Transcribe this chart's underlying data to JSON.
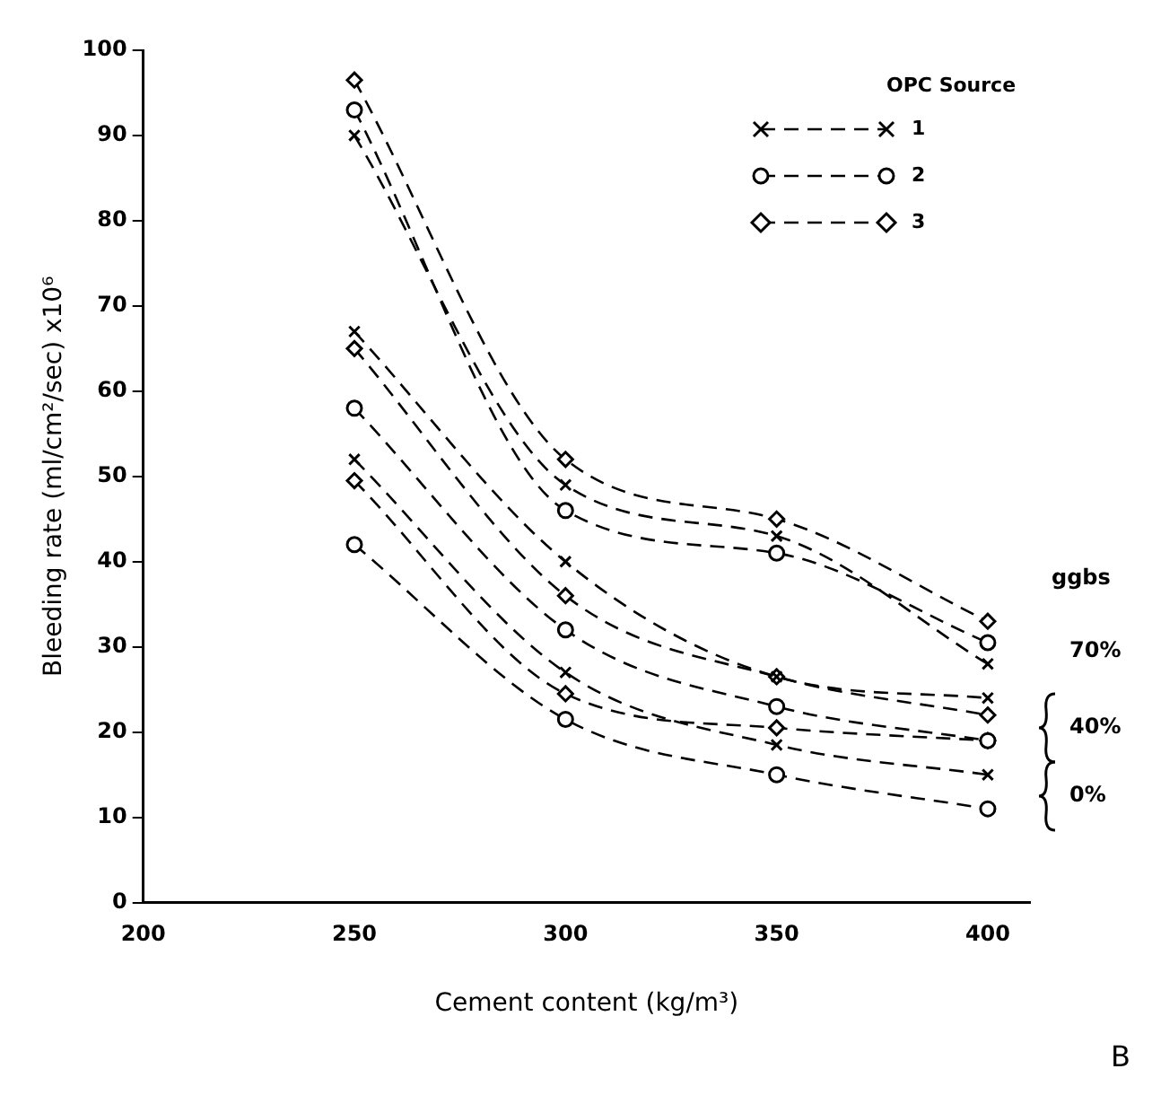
{
  "chart_data": {
    "type": "line",
    "xlabel": "Cement content (kg/m³)",
    "ylabel": "Bleeding rate (ml/cm²/sec) x10⁶",
    "legend_title": "OPC Source",
    "x": [
      250,
      300,
      350,
      400
    ],
    "xlim": [
      200,
      410
    ],
    "xticks": [
      200,
      250,
      300,
      350,
      400
    ],
    "ylim": [
      0,
      100
    ],
    "yticks": [
      0,
      10,
      20,
      30,
      40,
      50,
      60,
      70,
      80,
      90,
      100
    ],
    "grid": false,
    "legend": "top right",
    "line_style": "dashed",
    "series": [
      {
        "name": "1",
        "color": "#000000",
        "marker": "cross",
        "values": [
          90,
          49,
          43,
          28
        ]
      },
      {
        "name": "2",
        "color": "#000000",
        "marker": "circle",
        "values": [
          93,
          46,
          41,
          30.5
        ]
      },
      {
        "name": "3",
        "color": "#000000",
        "marker": "diamond",
        "values": [
          96.5,
          52,
          45,
          33
        ]
      },
      {
        "color": "#000000",
        "marker": "cross",
        "values": [
          67,
          40,
          26.5,
          24
        ]
      },
      {
        "color": "#000000",
        "marker": "diamond",
        "values": [
          65,
          36,
          26.5,
          22
        ]
      },
      {
        "color": "#000000",
        "marker": "circle",
        "values": [
          58,
          32,
          23,
          19
        ]
      },
      {
        "color": "#000000",
        "marker": "cross",
        "values": [
          52,
          27,
          18.5,
          15
        ]
      },
      {
        "color": "#000000",
        "marker": "diamond",
        "values": [
          49.5,
          24.5,
          20.5,
          19
        ]
      },
      {
        "color": "#000000",
        "marker": "circle",
        "values": [
          42,
          21.5,
          15,
          11
        ]
      }
    ],
    "annotations": [
      "ggbs",
      "70%",
      "40%",
      "0%",
      "B"
    ]
  }
}
